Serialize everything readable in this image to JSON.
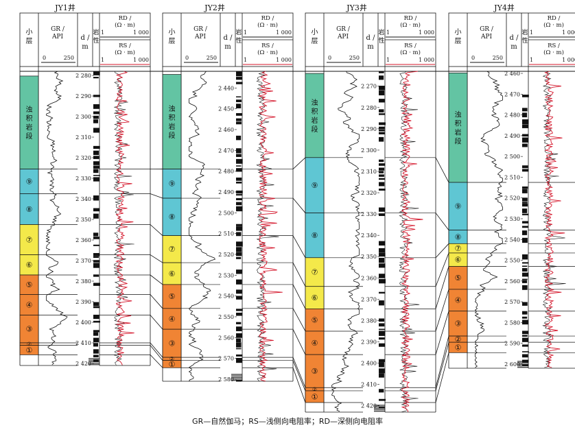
{
  "colors": {
    "turbidite": "#63c4a3",
    "cyan": "#5fc6d3",
    "yellow": "#f4e94a",
    "orange": "#f08434",
    "log_red": "#d4152a",
    "log_black": "#111111",
    "line": "#111111"
  },
  "header_labels": {
    "layer": "小层",
    "gr": "GR / API",
    "gr_scale": [
      "0",
      "250"
    ],
    "depth": "d / m",
    "lith": "岩性",
    "rd": "RD / (Ω · m)",
    "rs": "RS / (Ω · m)",
    "res_scale": [
      "1",
      "1 000"
    ]
  },
  "turbidite_label": "浊积岩段",
  "wells": [
    {
      "name": "JY1井",
      "depth_top": 2278,
      "depth_bottom": 2421,
      "tick_step": 10,
      "depth_ticks": [
        "2 280",
        "2 290",
        "2 300",
        "2 310",
        "2 320",
        "2 330",
        "2 340",
        "2 350",
        "2 360",
        "2 370",
        "2 380",
        "2 390",
        "2 400",
        "2 410",
        "2 420"
      ],
      "zones": [
        {
          "label": "浊积岩段",
          "kind": "turbidite",
          "from": 2280.3,
          "to": 2325.5
        },
        {
          "label": "⑨",
          "kind": "cyan",
          "from": 2325.5,
          "to": 2337.5
        },
        {
          "label": "⑧",
          "kind": "cyan",
          "from": 2337.5,
          "to": 2352.5
        },
        {
          "label": "⑦",
          "kind": "yellow",
          "from": 2352.5,
          "to": 2367.2
        },
        {
          "label": "⑥",
          "kind": "yellow",
          "from": 2367.2,
          "to": 2377.0
        },
        {
          "label": "⑤",
          "kind": "orange",
          "from": 2377.0,
          "to": 2386.5
        },
        {
          "label": "④",
          "kind": "orange",
          "from": 2386.5,
          "to": 2396.5
        },
        {
          "label": "③",
          "kind": "orange",
          "from": 2396.5,
          "to": 2410.0
        },
        {
          "label": "②",
          "kind": "orange",
          "from": 2410.0,
          "to": 2411.2
        },
        {
          "label": "①",
          "kind": "orange",
          "from": 2411.2,
          "to": 2415.8
        }
      ]
    },
    {
      "name": "JY2井",
      "depth_top": 2432,
      "depth_bottom": 2581,
      "tick_step": 10,
      "depth_ticks": [
        "2 440",
        "2 450",
        "2 460",
        "2 470",
        "2 480",
        "2 490",
        "2 500",
        "2 510",
        "2 520",
        "2 530",
        "2 540",
        "2 550",
        "2 560",
        "2 570",
        "2 580"
      ],
      "zones": [
        {
          "label": "浊积岩段",
          "kind": "turbidite",
          "from": 2433.5,
          "to": 2479.0
        },
        {
          "label": "⑨",
          "kind": "cyan",
          "from": 2479.0,
          "to": 2493.0
        },
        {
          "label": "⑧",
          "kind": "cyan",
          "from": 2493.0,
          "to": 2511.0
        },
        {
          "label": "⑦",
          "kind": "yellow",
          "from": 2511.0,
          "to": 2524.0
        },
        {
          "label": "⑥",
          "kind": "yellow",
          "from": 2524.0,
          "to": 2534.5
        },
        {
          "label": "⑤",
          "kind": "orange",
          "from": 2534.5,
          "to": 2546.0
        },
        {
          "label": "④",
          "kind": "orange",
          "from": 2546.0,
          "to": 2556.0
        },
        {
          "label": "③",
          "kind": "orange",
          "from": 2556.0,
          "to": 2569.5
        },
        {
          "label": "②",
          "kind": "orange",
          "from": 2569.5,
          "to": 2571.0
        },
        {
          "label": "①",
          "kind": "orange",
          "from": 2571.0,
          "to": 2574.5
        }
      ]
    },
    {
      "name": "JY3井",
      "depth_top": 2263,
      "depth_bottom": 2423,
      "tick_step": 10,
      "depth_ticks": [
        "2 270",
        "2 280",
        "2 290",
        "2 300",
        "2 310",
        "2 320",
        "2 330",
        "2 340",
        "2 350",
        "2 360",
        "2 370",
        "2 380",
        "2 390",
        "2 400",
        "2 410",
        "2 420"
      ],
      "zones": [
        {
          "label": "浊积岩段",
          "kind": "turbidite",
          "from": 2264.0,
          "to": 2303.5
        },
        {
          "label": "⑨",
          "kind": "cyan",
          "from": 2303.5,
          "to": 2329.5
        },
        {
          "label": "⑧",
          "kind": "cyan",
          "from": 2329.5,
          "to": 2350.5
        },
        {
          "label": "⑦",
          "kind": "yellow",
          "from": 2350.5,
          "to": 2364.0
        },
        {
          "label": "⑥",
          "kind": "yellow",
          "from": 2364.0,
          "to": 2374.5
        },
        {
          "label": "⑤",
          "kind": "orange",
          "from": 2374.5,
          "to": 2385.0
        },
        {
          "label": "④",
          "kind": "orange",
          "from": 2385.0,
          "to": 2396.0
        },
        {
          "label": "③",
          "kind": "orange",
          "from": 2396.0,
          "to": 2411.5
        },
        {
          "label": "②",
          "kind": "orange",
          "from": 2411.5,
          "to": 2413.0
        },
        {
          "label": "①",
          "kind": "orange",
          "from": 2413.0,
          "to": 2418.5
        }
      ]
    },
    {
      "name": "JY4井",
      "depth_top": 2459,
      "depth_bottom": 2602,
      "tick_step": 10,
      "depth_ticks": [
        "2 460",
        "2 470",
        "2 480",
        "2 490",
        "2 500",
        "2 510",
        "2 520",
        "2 530",
        "2 540",
        "2 550",
        "2 560",
        "2 570",
        "2 580",
        "2 590",
        "2 600"
      ],
      "zones": [
        {
          "label": "浊积岩段",
          "kind": "turbidite",
          "from": 2459.8,
          "to": 2512.5
        },
        {
          "label": "⑨",
          "kind": "cyan",
          "from": 2512.5,
          "to": 2535.5
        },
        {
          "label": "⑧",
          "kind": "cyan",
          "from": 2535.5,
          "to": 2542.0
        },
        {
          "label": "⑦",
          "kind": "yellow",
          "from": 2542.0,
          "to": 2546.5
        },
        {
          "label": "⑥",
          "kind": "yellow",
          "from": 2546.5,
          "to": 2553.0
        },
        {
          "label": "⑤",
          "kind": "orange",
          "from": 2553.0,
          "to": 2564.0
        },
        {
          "label": "④",
          "kind": "orange",
          "from": 2564.0,
          "to": 2574.5
        },
        {
          "label": "③",
          "kind": "orange",
          "from": 2574.5,
          "to": 2586.5
        },
        {
          "label": "②",
          "kind": "orange",
          "from": 2586.5,
          "to": 2589.5
        },
        {
          "label": "①",
          "kind": "orange",
          "from": 2589.5,
          "to": 2594.5
        }
      ]
    }
  ],
  "caption": "GR—自然伽马；RS—浅侧向电阻率；RD—深侧向电阻率"
}
